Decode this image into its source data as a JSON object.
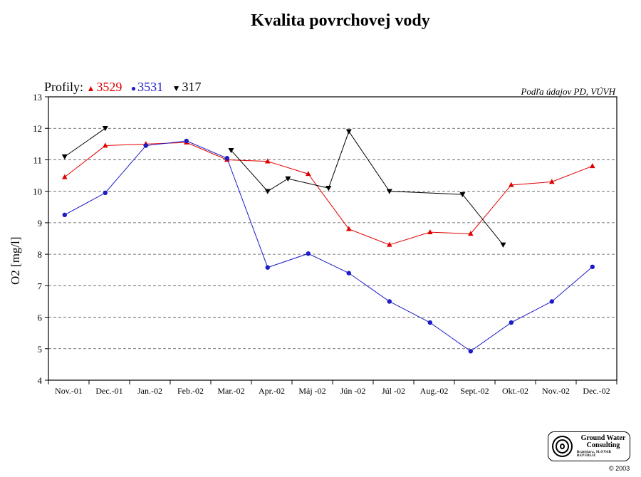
{
  "chart_data": {
    "type": "line",
    "title": "Kvalita povrchovej vody",
    "legend_title": "Profily:",
    "source_note": "Podľa údajov PD, VÚVH",
    "ylabel": "O2 [mg/l]",
    "xlabel": "",
    "ylim": [
      4,
      13
    ],
    "y_ticks": [
      4,
      5,
      6,
      7,
      8,
      9,
      10,
      11,
      12,
      13
    ],
    "grid": "horizontal-dashed",
    "legend_position": "top-left",
    "categories": [
      "Nov.-01",
      "Dec.-01",
      "Jan.-02",
      "Feb.-02",
      "Mar.-02",
      "Apr.-02",
      "Máj -02",
      "Jún -02",
      "Júl -02",
      "Aug.-02",
      "Sept.-02",
      "Okt.-02",
      "Nov.-02",
      "Dec.-02"
    ],
    "series": [
      {
        "name": "3529",
        "color": "#e00000",
        "marker": "triangle-up",
        "points": [
          {
            "x": 0.4,
            "y": 10.45
          },
          {
            "x": 1.4,
            "y": 11.45
          },
          {
            "x": 2.4,
            "y": 11.5
          },
          {
            "x": 3.4,
            "y": 11.55
          },
          {
            "x": 4.4,
            "y": 11.0
          },
          {
            "x": 5.4,
            "y": 10.95
          },
          {
            "x": 6.4,
            "y": 10.55
          },
          {
            "x": 7.4,
            "y": 8.8
          },
          {
            "x": 8.4,
            "y": 8.3
          },
          {
            "x": 9.4,
            "y": 8.7
          },
          {
            "x": 10.4,
            "y": 8.65
          },
          {
            "x": 11.4,
            "y": 10.2
          },
          {
            "x": 12.4,
            "y": 10.3
          },
          {
            "x": 13.4,
            "y": 10.8
          }
        ]
      },
      {
        "name": "3531",
        "color": "#1c1cc8",
        "marker": "circle",
        "points": [
          {
            "x": 0.4,
            "y": 9.25
          },
          {
            "x": 1.4,
            "y": 9.95
          },
          {
            "x": 2.4,
            "y": 11.45
          },
          {
            "x": 3.4,
            "y": 11.6
          },
          {
            "x": 4.4,
            "y": 11.05
          },
          {
            "x": 5.4,
            "y": 7.58
          },
          {
            "x": 6.4,
            "y": 8.02
          },
          {
            "x": 7.4,
            "y": 7.4
          },
          {
            "x": 8.4,
            "y": 6.5
          },
          {
            "x": 9.4,
            "y": 5.83
          },
          {
            "x": 10.4,
            "y": 4.92
          },
          {
            "x": 11.4,
            "y": 5.83
          },
          {
            "x": 12.4,
            "y": 6.5
          },
          {
            "x": 13.4,
            "y": 7.6
          }
        ]
      },
      {
        "name": "317",
        "color": "#000000",
        "marker": "triangle-down",
        "segments": [
          [
            {
              "x": 0.4,
              "y": 11.1
            },
            {
              "x": 1.4,
              "y": 12.0
            }
          ],
          [
            {
              "x": 4.5,
              "y": 11.3
            },
            {
              "x": 5.4,
              "y": 10.0
            },
            {
              "x": 5.9,
              "y": 10.4
            },
            {
              "x": 6.9,
              "y": 10.1
            },
            {
              "x": 7.4,
              "y": 11.9
            },
            {
              "x": 8.4,
              "y": 10.0
            },
            {
              "x": 10.2,
              "y": 9.9
            },
            {
              "x": 11.2,
              "y": 8.3
            }
          ]
        ]
      }
    ]
  },
  "logo": {
    "line1": "Ground Water",
    "line2": "Consulting",
    "line3": "Bratislava, SLOVAK REPUBLIC"
  },
  "copyright": "© 2003"
}
